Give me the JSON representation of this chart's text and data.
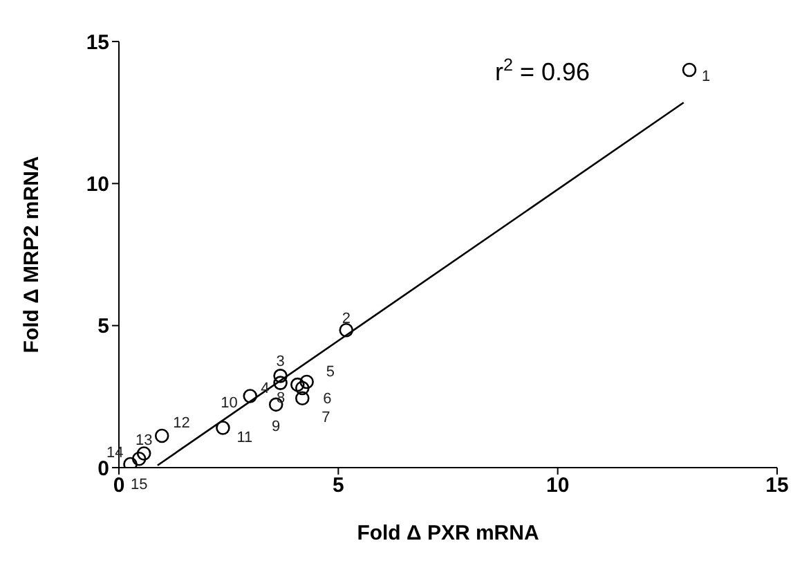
{
  "chart_data": {
    "type": "scatter",
    "xlabel": "Fold Δ PXR mRNA",
    "ylabel": "Fold Δ MRP2 mRNA",
    "xlim": [
      0,
      15
    ],
    "xticks": [
      0,
      5,
      10,
      15
    ],
    "ylim": [
      0,
      15
    ],
    "yticks": [
      0,
      5,
      10,
      15
    ],
    "grid": false,
    "marker": "circle",
    "series": [
      {
        "type": "scatter",
        "color": "#000000",
        "x": [
          13.0,
          5.18,
          3.68,
          3.68,
          4.28,
          4.18,
          4.18,
          4.07,
          3.58,
          2.99,
          2.37,
          0.98,
          0.57,
          0.26,
          0.46
        ],
        "values": [
          14.0,
          4.84,
          3.23,
          2.98,
          3.02,
          2.8,
          2.44,
          2.92,
          2.22,
          2.52,
          1.4,
          1.12,
          0.5,
          0.12,
          0.31
        ]
      },
      {
        "type": "line",
        "color": "#000000",
        "marker": "none",
        "x": [
          0.88,
          12.87
        ],
        "values": [
          0.08,
          12.85
        ]
      }
    ],
    "annotations": [
      "r$^{2}$ = 0.96",
      {
        "text": "1",
        "x": 13.0,
        "y": 14.0
      },
      {
        "text": "2",
        "x": 5.18,
        "y": 4.84
      },
      {
        "text": "3",
        "x": 3.68,
        "y": 3.23
      },
      {
        "text": "4",
        "x": 3.68,
        "y": 2.98
      },
      {
        "text": "5",
        "x": 4.28,
        "y": 3.02
      },
      {
        "text": "6",
        "x": 4.18,
        "y": 2.8
      },
      {
        "text": "7",
        "x": 4.18,
        "y": 2.44
      },
      {
        "text": "8",
        "x": 4.07,
        "y": 2.92
      },
      {
        "text": "9",
        "x": 3.58,
        "y": 2.22
      },
      {
        "text": "10",
        "x": 2.99,
        "y": 2.52
      },
      {
        "text": "11",
        "x": 2.37,
        "y": 1.4
      },
      {
        "text": "12",
        "x": 0.98,
        "y": 1.12
      },
      {
        "text": "13",
        "x": 0.57,
        "y": 0.5
      },
      {
        "text": "14",
        "x": 0.26,
        "y": 0.12
      },
      {
        "text": "15",
        "x": 0.46,
        "y": 0.31
      }
    ]
  }
}
